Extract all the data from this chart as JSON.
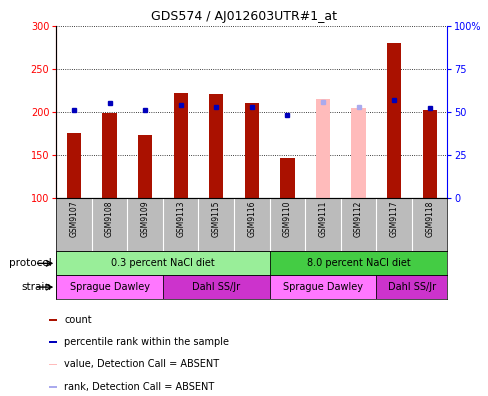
{
  "title": "GDS574 / AJ012603UTR#1_at",
  "samples": [
    "GSM9107",
    "GSM9108",
    "GSM9109",
    "GSM9113",
    "GSM9115",
    "GSM9116",
    "GSM9110",
    "GSM9111",
    "GSM9112",
    "GSM9117",
    "GSM9118"
  ],
  "count_values": [
    175,
    199,
    173,
    222,
    221,
    210,
    146,
    null,
    null,
    280,
    202
  ],
  "count_absent": [
    null,
    null,
    null,
    null,
    null,
    null,
    null,
    215,
    204,
    null,
    null
  ],
  "rank_values": [
    51,
    55,
    51,
    54,
    53,
    53,
    48,
    null,
    null,
    57,
    52
  ],
  "rank_absent": [
    null,
    null,
    null,
    null,
    null,
    null,
    null,
    56,
    53,
    null,
    null
  ],
  "ylim_left": [
    100,
    300
  ],
  "ylim_right": [
    0,
    100
  ],
  "left_ticks": [
    100,
    150,
    200,
    250,
    300
  ],
  "right_ticks": [
    0,
    25,
    50,
    75,
    100
  ],
  "protocol_groups": [
    {
      "label": "0.3 percent NaCl diet",
      "start": 0,
      "end": 6,
      "color": "#99ee99"
    },
    {
      "label": "8.0 percent NaCl diet",
      "start": 6,
      "end": 11,
      "color": "#44cc44"
    }
  ],
  "strain_groups": [
    {
      "label": "Sprague Dawley",
      "start": 0,
      "end": 3,
      "color": "#ff77ff"
    },
    {
      "label": "Dahl SS/Jr",
      "start": 3,
      "end": 6,
      "color": "#cc33cc"
    },
    {
      "label": "Sprague Dawley",
      "start": 6,
      "end": 9,
      "color": "#ff77ff"
    },
    {
      "label": "Dahl SS/Jr",
      "start": 9,
      "end": 11,
      "color": "#cc33cc"
    }
  ],
  "bar_color": "#aa1100",
  "bar_absent_color": "#ffbbbb",
  "rank_color": "#0000bb",
  "rank_absent_color": "#aaaaee",
  "tick_label_area_color": "#bbbbbb",
  "legend_items": [
    {
      "label": "count",
      "color": "#aa1100"
    },
    {
      "label": "percentile rank within the sample",
      "color": "#0000bb"
    },
    {
      "label": "value, Detection Call = ABSENT",
      "color": "#ffbbbb"
    },
    {
      "label": "rank, Detection Call = ABSENT",
      "color": "#aaaaee"
    }
  ]
}
